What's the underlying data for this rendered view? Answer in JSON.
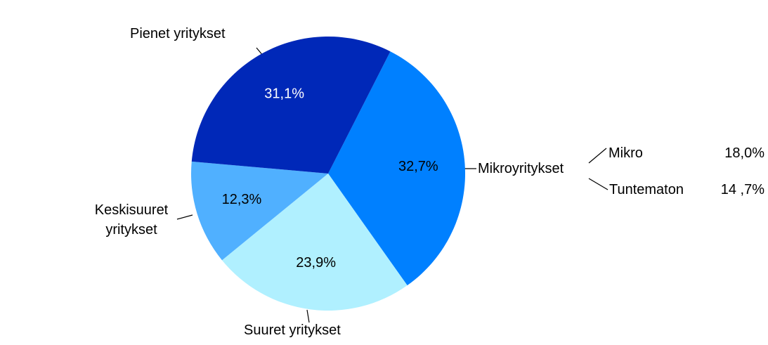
{
  "chart_data": {
    "type": "pie",
    "categories": [
      "Mikroyritykset",
      "Suuret yritykset",
      "Keskisuuret yritykset",
      "Pienet yritykset"
    ],
    "values": [
      32.7,
      23.9,
      12.3,
      31.1
    ],
    "value_labels": [
      "32,7%",
      "23,9%",
      "12,3%",
      "31,1%"
    ],
    "colors": [
      "#0080ff",
      "#b0f0ff",
      "#50b0ff",
      "#0028b8"
    ],
    "breakdown": {
      "parent": "Mikroyritykset",
      "items": [
        {
          "name": "Mikro",
          "value": 18.0,
          "value_label": "18,0%"
        },
        {
          "name": "Tuntematon",
          "value": 14.7,
          "value_label": "14 ,7%"
        }
      ]
    }
  }
}
